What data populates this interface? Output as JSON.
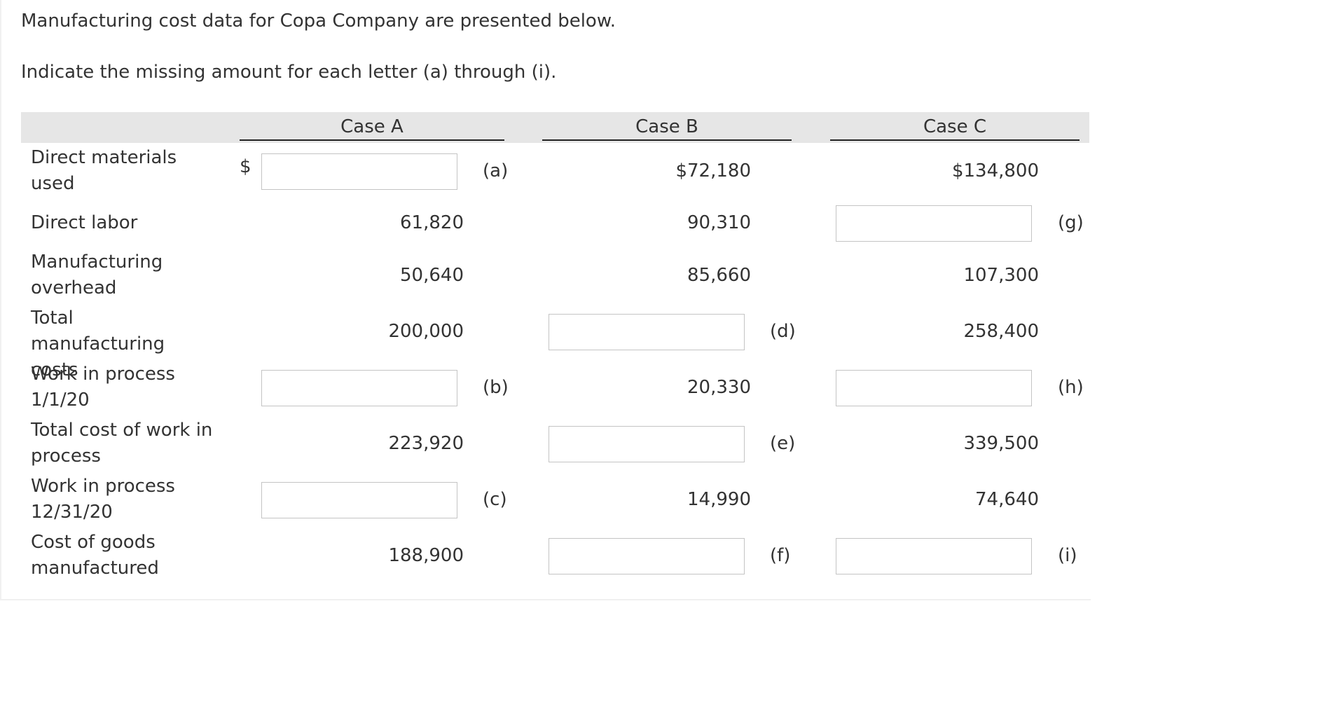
{
  "intro": {
    "line1": "Manufacturing cost data for Copa Company are presented below.",
    "line2": "Indicate the missing amount for each letter (a) through (i)."
  },
  "columns": {
    "case_a": "Case A",
    "case_b": "Case B",
    "case_c": "Case C"
  },
  "currency_symbol": "$",
  "rows": [
    {
      "label": "Direct materials used",
      "a": {
        "input": true,
        "letter": "(a)"
      },
      "b": {
        "value": "$72,180"
      },
      "c": {
        "value": "$134,800"
      }
    },
    {
      "label": "Direct labor",
      "a": {
        "value": "61,820"
      },
      "b": {
        "value": "90,310"
      },
      "c": {
        "input": true,
        "letter": "(g)"
      }
    },
    {
      "label": "Manufacturing overhead",
      "a": {
        "value": "50,640"
      },
      "b": {
        "value": "85,660"
      },
      "c": {
        "value": "107,300"
      }
    },
    {
      "label": "Total manufacturing costs",
      "a": {
        "value": "200,000"
      },
      "b": {
        "input": true,
        "letter": "(d)"
      },
      "c": {
        "value": "258,400"
      }
    },
    {
      "label": "Work in process 1/1/20",
      "a": {
        "input": true,
        "letter": "(b)"
      },
      "b": {
        "value": "20,330"
      },
      "c": {
        "input": true,
        "letter": "(h)"
      }
    },
    {
      "label": "Total cost of work in process",
      "a": {
        "value": "223,920"
      },
      "b": {
        "input": true,
        "letter": "(e)"
      },
      "c": {
        "value": "339,500"
      }
    },
    {
      "label": "Work in process 12/31/20",
      "a": {
        "input": true,
        "letter": "(c)"
      },
      "b": {
        "value": "14,990"
      },
      "c": {
        "value": "74,640"
      }
    },
    {
      "label": "Cost of goods manufactured",
      "a": {
        "value": "188,900"
      },
      "b": {
        "input": true,
        "letter": "(f)"
      },
      "c": {
        "input": true,
        "letter": "(i)"
      }
    }
  ]
}
